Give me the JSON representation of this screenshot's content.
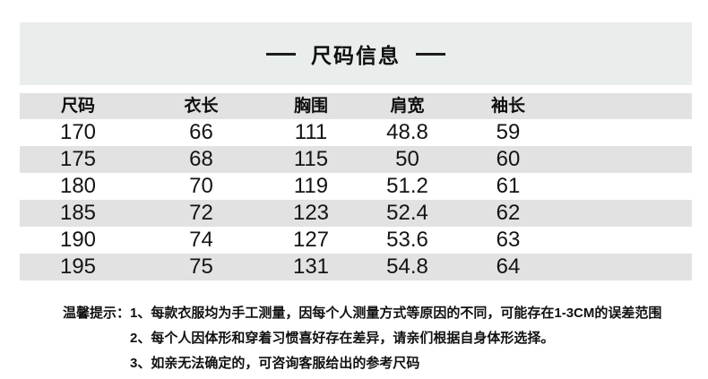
{
  "title": {
    "text": "尺码信息"
  },
  "table": {
    "headers": [
      "尺码",
      "衣长",
      "胸围",
      "肩宽",
      "袖长"
    ],
    "rows": [
      [
        "170",
        "66",
        "111",
        "48.8",
        "59"
      ],
      [
        "175",
        "68",
        "115",
        "50",
        "60"
      ],
      [
        "180",
        "70",
        "119",
        "51.2",
        "61"
      ],
      [
        "185",
        "72",
        "123",
        "52.4",
        "62"
      ],
      [
        "190",
        "74",
        "127",
        "53.6",
        "63"
      ],
      [
        "195",
        "75",
        "131",
        "54.8",
        "64"
      ]
    ]
  },
  "tips": {
    "label": "温馨提示：",
    "lines": [
      "1、每款衣服均为手工测量，因每个人测量方式等原因的不同，可能存在1-3CM的误差范围",
      "2、每个人因体形和穿着习惯喜好存在差异，请亲们根据自身体形选择。",
      "3、如亲无法确定的，可咨询客服给出的参考尺码"
    ]
  },
  "colors": {
    "background": "#ffffff",
    "title_panel": "#e9eeec",
    "row_stripe": "#e2e2e2",
    "text": "#111111"
  },
  "chart_data": {
    "type": "table",
    "title": "尺码信息",
    "columns": [
      "尺码",
      "衣长",
      "胸围",
      "肩宽",
      "袖长"
    ],
    "rows": [
      [
        170,
        66,
        111,
        48.8,
        59
      ],
      [
        175,
        68,
        115,
        50.0,
        60
      ],
      [
        180,
        70,
        119,
        51.2,
        61
      ],
      [
        185,
        72,
        123,
        52.4,
        62
      ],
      [
        190,
        74,
        127,
        53.6,
        63
      ],
      [
        195,
        75,
        131,
        54.8,
        64
      ]
    ],
    "notes_header": "温馨提示：",
    "notes": [
      "1、每款衣服均为手工测量，因每个人测量方式等原因的不同，可能存在1-3CM的误差范围",
      "2、每个人因体形和穿着习惯喜好存在差异，请亲们根据自身体形选择。",
      "3、如亲无法确定的，可咨询客服给出的参考尺码"
    ],
    "layout": {
      "zebra_striping": true,
      "header_background": "#e2e2e2",
      "stripe_rows": [
        1,
        3,
        5
      ]
    }
  }
}
